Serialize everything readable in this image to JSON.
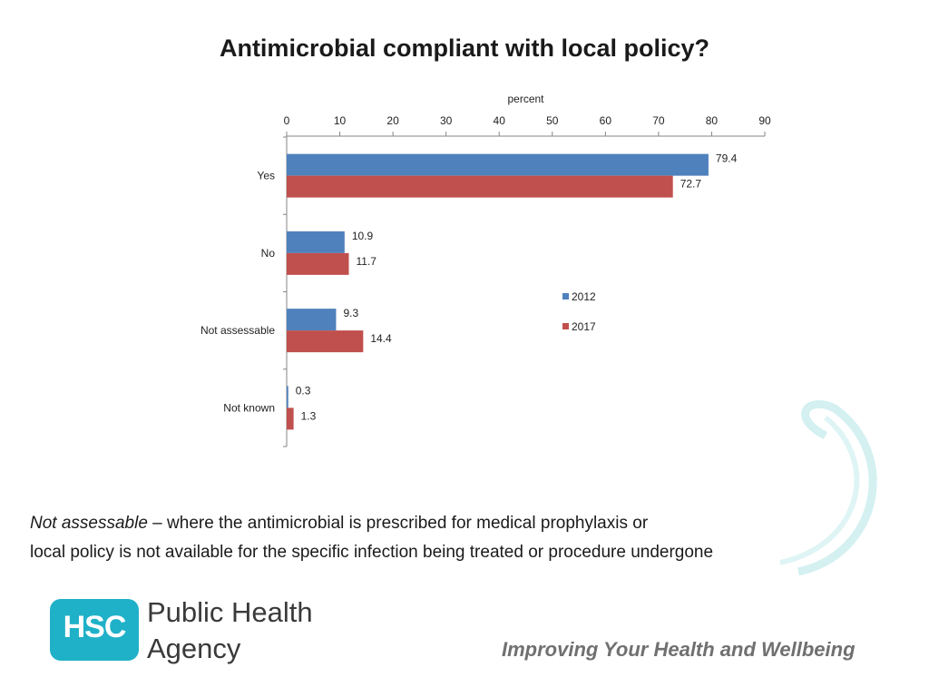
{
  "title": "Antimicrobial compliant with local policy?",
  "chart_data": {
    "type": "bar",
    "orientation": "horizontal",
    "title": "Antimicrobial compliant with local policy?",
    "xlabel": "percent",
    "ylabel": "",
    "xlim": [
      0,
      90
    ],
    "xticks": [
      0,
      10,
      20,
      30,
      40,
      50,
      60,
      70,
      80,
      90
    ],
    "categories": [
      "Yes",
      "No",
      "Not assessable",
      "Not known"
    ],
    "series": [
      {
        "name": "2012",
        "values": [
          79.4,
          10.9,
          9.3,
          0.3
        ],
        "color": "#4f81bd"
      },
      {
        "name": "2017",
        "values": [
          72.7,
          11.7,
          14.4,
          1.3
        ],
        "color": "#c0504d"
      }
    ],
    "legend_position": "right"
  },
  "footnote": {
    "term": "Not assessable",
    "line1_rest": " – where the antimicrobial is prescribed for medical prophylaxis or",
    "line2": "local policy is not available for the specific infection being treated or procedure undergone"
  },
  "logo": {
    "abbr": "HSC",
    "org_line1": "Public Health",
    "org_line2": "Agency",
    "tagline": "Improving Your Health and Wellbeing",
    "brand_color": "#1fb1c8"
  }
}
